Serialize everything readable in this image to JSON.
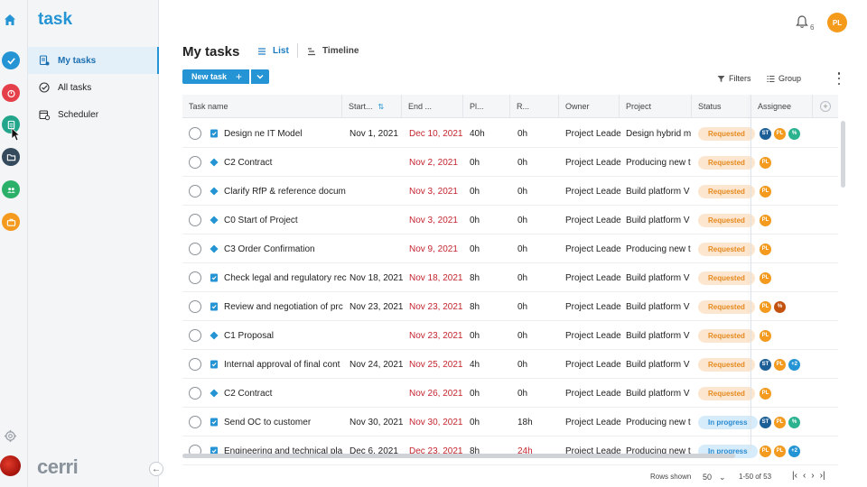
{
  "app": {
    "brand": "task",
    "footer_logo": "cerri",
    "notification_count": "6",
    "user_initials": "PL"
  },
  "rail": {
    "icons": [
      {
        "name": "tasks-app-icon",
        "color": "#2494d4"
      },
      {
        "name": "timer-app-icon",
        "color": "#e5404a"
      },
      {
        "name": "notes-app-icon",
        "color": "#23a58b"
      },
      {
        "name": "folder-app-icon",
        "color": "#354a5c"
      },
      {
        "name": "team-app-icon",
        "color": "#2bb06a"
      },
      {
        "name": "briefcase-app-icon",
        "color": "#f39a1f"
      }
    ]
  },
  "sidebar": {
    "items": [
      {
        "label": "My tasks",
        "icon": "my-tasks-icon",
        "active": true
      },
      {
        "label": "All tasks",
        "icon": "all-tasks-icon",
        "active": false
      },
      {
        "label": "Scheduler",
        "icon": "scheduler-icon",
        "active": false
      }
    ]
  },
  "header": {
    "title": "My tasks",
    "tabs": [
      {
        "label": "List",
        "active": true
      },
      {
        "label": "Timeline",
        "active": false
      }
    ],
    "new_task_label": "New task",
    "filters_label": "Filters",
    "group_label": "Group"
  },
  "table": {
    "columns": [
      "Task name",
      "Start...",
      "End ...",
      "Pl...",
      "R...",
      "Owner",
      "Project",
      "Status",
      "Assignee"
    ],
    "rows": [
      {
        "name": "Design ne IT Model",
        "type": "task",
        "start": "Nov 1, 2021",
        "end": "Dec 10, 2021",
        "planned": "40h",
        "remaining": "0h",
        "remaining_red": false,
        "owner": "Project Leade",
        "project": "Design hybrid m",
        "status": "Requested",
        "assignees": [
          "ST",
          "PL",
          "%"
        ]
      },
      {
        "name": "C2 Contract",
        "type": "milestone",
        "start": "",
        "end": "Nov 2, 2021",
        "planned": "0h",
        "remaining": "0h",
        "remaining_red": false,
        "owner": "Project Leade",
        "project": "Producing new t",
        "status": "Requested",
        "assignees": [
          "PL"
        ]
      },
      {
        "name": "Clarify RfP & reference docum",
        "type": "milestone",
        "start": "",
        "end": "Nov 3, 2021",
        "planned": "0h",
        "remaining": "0h",
        "remaining_red": false,
        "owner": "Project Leade",
        "project": "Build platform V",
        "status": "Requested",
        "assignees": [
          "PL"
        ]
      },
      {
        "name": "C0 Start of Project",
        "type": "milestone",
        "start": "",
        "end": "Nov 3, 2021",
        "planned": "0h",
        "remaining": "0h",
        "remaining_red": false,
        "owner": "Project Leade",
        "project": "Build platform V",
        "status": "Requested",
        "assignees": [
          "PL"
        ]
      },
      {
        "name": "C3 Order Confirmation",
        "type": "milestone",
        "start": "",
        "end": "Nov 9, 2021",
        "planned": "0h",
        "remaining": "0h",
        "remaining_red": false,
        "owner": "Project Leade",
        "project": "Producing new t",
        "status": "Requested",
        "assignees": [
          "PL"
        ]
      },
      {
        "name": "Check legal and regulatory rec",
        "type": "task",
        "start": "Nov 18, 2021",
        "end": "Nov 18, 2021",
        "planned": "8h",
        "remaining": "0h",
        "remaining_red": false,
        "owner": "Project Leade",
        "project": "Build platform V",
        "status": "Requested",
        "assignees": [
          "PL"
        ]
      },
      {
        "name": "Review and negotiation of prc",
        "type": "task",
        "start": "Nov 23, 2021",
        "end": "Nov 23, 2021",
        "planned": "8h",
        "remaining": "0h",
        "remaining_red": false,
        "owner": "Project Leade",
        "project": "Build platform V",
        "status": "Requested",
        "assignees": [
          "PL",
          "%"
        ]
      },
      {
        "name": "C1 Proposal",
        "type": "milestone",
        "start": "",
        "end": "Nov 23, 2021",
        "planned": "0h",
        "remaining": "0h",
        "remaining_red": false,
        "owner": "Project Leade",
        "project": "Build platform V",
        "status": "Requested",
        "assignees": [
          "PL"
        ]
      },
      {
        "name": "Internal approval of final cont",
        "type": "task",
        "start": "Nov 24, 2021",
        "end": "Nov 25, 2021",
        "planned": "4h",
        "remaining": "0h",
        "remaining_red": false,
        "owner": "Project Leade",
        "project": "Build platform V",
        "status": "Requested",
        "assignees": [
          "ST",
          "PL",
          "+2"
        ]
      },
      {
        "name": "C2 Contract",
        "type": "milestone",
        "start": "",
        "end": "Nov 26, 2021",
        "planned": "0h",
        "remaining": "0h",
        "remaining_red": false,
        "owner": "Project Leade",
        "project": "Build platform V",
        "status": "Requested",
        "assignees": [
          "PL"
        ]
      },
      {
        "name": "Send OC to customer",
        "type": "task",
        "start": "Nov 30, 2021",
        "end": "Nov 30, 2021",
        "planned": "0h",
        "remaining": "18h",
        "remaining_red": false,
        "owner": "Project Leade",
        "project": "Producing new t",
        "status": "In progress",
        "assignees": [
          "ST",
          "PL",
          "%"
        ]
      },
      {
        "name": "Engineering and technical pla",
        "type": "task",
        "start": "Dec 6, 2021",
        "end": "Dec 23, 2021",
        "planned": "8h",
        "remaining": "24h",
        "remaining_red": true,
        "owner": "Project Leade",
        "project": "Producing new t",
        "status": "In progress",
        "assignees": [
          "PL",
          "PL",
          "+2"
        ]
      }
    ]
  },
  "avatar_colors": {
    "ST": "#1c5f97",
    "PL": "#f39a1f",
    "%": "#2bb38f",
    "+2": "#2494d4"
  },
  "avatar_colors_alt": {
    "%": "#c4520f"
  },
  "footer": {
    "rows_shown_label": "Rows shown",
    "rows_per_page": "50",
    "range_text": "1-50 of 53"
  },
  "colors": {
    "accent": "#2494d4",
    "overdue": "#c4262e",
    "requested_bg": "#fde6cf",
    "requested_fg": "#e48a1f",
    "progress_bg": "#d7ecfb",
    "progress_fg": "#2a8ad0"
  }
}
